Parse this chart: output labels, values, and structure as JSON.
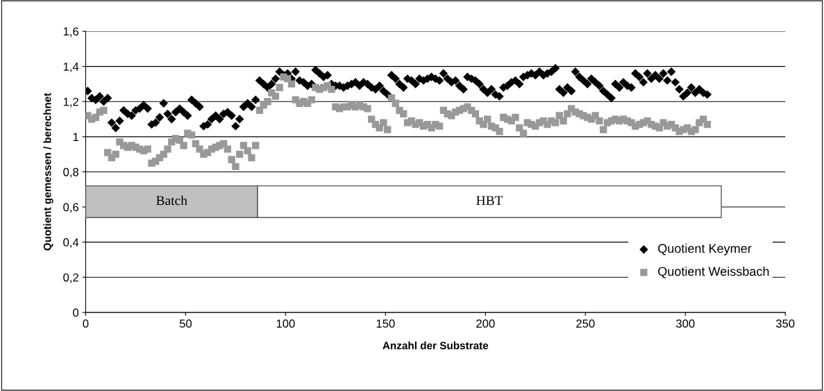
{
  "chart_data": {
    "type": "scatter",
    "xlabel": "Anzahl der Substrate",
    "ylabel": "Quotient gemessen / berechnet",
    "xlim": [
      0,
      350
    ],
    "xticks": [
      0,
      50,
      100,
      150,
      200,
      250,
      300,
      350
    ],
    "ylim": [
      0,
      1.6
    ],
    "yticks": [
      0,
      {
        "value": 0.2,
        "label": "0,2"
      },
      {
        "value": 0.4,
        "label": "0,4"
      },
      {
        "value": 0.6,
        "label": "0,6"
      },
      {
        "value": 0.8,
        "label": "0,8"
      },
      1,
      {
        "value": 1.2,
        "label": "1,2"
      },
      {
        "value": 1.4,
        "label": "1,4"
      },
      {
        "value": 1.6,
        "label": "1,6"
      }
    ],
    "grid": "y",
    "legend": "bottom right",
    "bands": [
      {
        "axis": "x",
        "from": 0,
        "to": 86,
        "label": "Batch",
        "color": "#c0c0c0"
      },
      {
        "axis": "x",
        "from": 86,
        "to": 318,
        "label": "HBT",
        "color": "#ffffff"
      }
    ],
    "series": [
      {
        "name": "Quotient Keymer",
        "color": "#000000",
        "marker": "diamond",
        "x": [
          1,
          3,
          5,
          7,
          9,
          11,
          13,
          15,
          17,
          19,
          21,
          23,
          25,
          27,
          29,
          31,
          33,
          35,
          37,
          39,
          41,
          43,
          45,
          47,
          49,
          51,
          53,
          55,
          57,
          59,
          61,
          63,
          65,
          67,
          69,
          71,
          73,
          75,
          77,
          79,
          81,
          83,
          85,
          87,
          89,
          91,
          93,
          95,
          97,
          99,
          101,
          103,
          105,
          107,
          109,
          111,
          113,
          115,
          117,
          119,
          121,
          123,
          125,
          127,
          129,
          131,
          133,
          135,
          137,
          139,
          141,
          143,
          145,
          147,
          149,
          151,
          153,
          155,
          157,
          159,
          161,
          163,
          165,
          167,
          169,
          171,
          173,
          175,
          177,
          179,
          181,
          183,
          185,
          187,
          189,
          191,
          193,
          195,
          197,
          199,
          201,
          203,
          205,
          207,
          209,
          211,
          213,
          215,
          217,
          219,
          221,
          223,
          225,
          227,
          229,
          231,
          233,
          235,
          237,
          239,
          241,
          243,
          245,
          247,
          249,
          251,
          253,
          255,
          257,
          259,
          261,
          263,
          265,
          267,
          269,
          271,
          273,
          275,
          277,
          279,
          281,
          283,
          285,
          287,
          289,
          291,
          293,
          295,
          297,
          299,
          301,
          303,
          305,
          307,
          309,
          311
        ],
        "values": [
          1.26,
          1.22,
          1.21,
          1.23,
          1.2,
          1.22,
          1.08,
          1.05,
          1.09,
          1.15,
          1.13,
          1.12,
          1.15,
          1.16,
          1.18,
          1.16,
          1.07,
          1.08,
          1.11,
          1.19,
          1.13,
          1.1,
          1.14,
          1.16,
          1.14,
          1.12,
          1.21,
          1.19,
          1.17,
          1.06,
          1.07,
          1.1,
          1.12,
          1.1,
          1.13,
          1.14,
          1.12,
          1.06,
          1.1,
          1.17,
          1.19,
          1.17,
          1.21,
          1.32,
          1.3,
          1.28,
          1.3,
          1.33,
          1.37,
          1.35,
          1.36,
          1.33,
          1.37,
          1.32,
          1.31,
          1.29,
          1.3,
          1.38,
          1.36,
          1.34,
          1.35,
          1.3,
          1.29,
          1.29,
          1.28,
          1.29,
          1.3,
          1.31,
          1.29,
          1.31,
          1.3,
          1.28,
          1.27,
          1.29,
          1.26,
          1.24,
          1.35,
          1.33,
          1.3,
          1.28,
          1.33,
          1.32,
          1.3,
          1.33,
          1.32,
          1.33,
          1.34,
          1.33,
          1.32,
          1.36,
          1.33,
          1.31,
          1.32,
          1.29,
          1.27,
          1.34,
          1.33,
          1.32,
          1.3,
          1.27,
          1.25,
          1.27,
          1.24,
          1.23,
          1.28,
          1.29,
          1.31,
          1.32,
          1.3,
          1.34,
          1.35,
          1.36,
          1.35,
          1.37,
          1.35,
          1.36,
          1.37,
          1.39,
          1.27,
          1.25,
          1.28,
          1.26,
          1.37,
          1.34,
          1.32,
          1.3,
          1.33,
          1.31,
          1.29,
          1.26,
          1.24,
          1.22,
          1.3,
          1.28,
          1.31,
          1.29,
          1.28,
          1.36,
          1.34,
          1.31,
          1.36,
          1.33,
          1.35,
          1.33,
          1.36,
          1.32,
          1.37,
          1.31,
          1.27,
          1.23,
          1.25,
          1.28,
          1.25,
          1.27,
          1.25,
          1.24
        ]
      },
      {
        "name": "Quotient Weissbach",
        "color": "#999999",
        "marker": "square",
        "x": [
          1,
          3,
          5,
          7,
          9,
          11,
          13,
          15,
          17,
          19,
          21,
          23,
          25,
          27,
          29,
          31,
          33,
          35,
          37,
          39,
          41,
          43,
          45,
          47,
          49,
          51,
          53,
          55,
          57,
          59,
          61,
          63,
          65,
          67,
          69,
          71,
          73,
          75,
          77,
          79,
          81,
          83,
          85,
          87,
          89,
          91,
          93,
          95,
          97,
          99,
          101,
          103,
          105,
          107,
          109,
          111,
          113,
          115,
          117,
          119,
          121,
          123,
          125,
          127,
          129,
          131,
          133,
          135,
          137,
          139,
          141,
          143,
          145,
          147,
          149,
          151,
          153,
          155,
          157,
          159,
          161,
          163,
          165,
          167,
          169,
          171,
          173,
          175,
          177,
          179,
          181,
          183,
          185,
          187,
          189,
          191,
          193,
          195,
          197,
          199,
          201,
          203,
          205,
          207,
          209,
          211,
          213,
          215,
          217,
          219,
          221,
          223,
          225,
          227,
          229,
          231,
          233,
          235,
          237,
          239,
          241,
          243,
          245,
          247,
          249,
          251,
          253,
          255,
          257,
          259,
          261,
          263,
          265,
          267,
          269,
          271,
          273,
          275,
          277,
          279,
          281,
          283,
          285,
          287,
          289,
          291,
          293,
          295,
          297,
          299,
          301,
          303,
          305,
          307,
          309,
          311
        ],
        "values": [
          1.12,
          1.1,
          1.11,
          1.14,
          1.15,
          0.91,
          0.88,
          0.9,
          0.97,
          0.95,
          0.94,
          0.95,
          0.94,
          0.93,
          0.92,
          0.93,
          0.85,
          0.86,
          0.88,
          0.9,
          0.93,
          0.97,
          0.99,
          0.98,
          0.95,
          1.02,
          1.01,
          0.96,
          0.93,
          0.9,
          0.91,
          0.93,
          0.94,
          0.95,
          0.96,
          0.93,
          0.87,
          0.83,
          0.9,
          0.95,
          0.92,
          0.88,
          0.95,
          1.15,
          1.18,
          1.2,
          1.25,
          1.23,
          1.28,
          1.34,
          1.33,
          1.3,
          1.21,
          1.19,
          1.2,
          1.19,
          1.21,
          1.28,
          1.27,
          1.28,
          1.29,
          1.27,
          1.17,
          1.16,
          1.17,
          1.17,
          1.18,
          1.17,
          1.18,
          1.17,
          1.16,
          1.1,
          1.07,
          1.05,
          1.08,
          1.04,
          1.22,
          1.19,
          1.15,
          1.13,
          1.08,
          1.09,
          1.07,
          1.08,
          1.06,
          1.07,
          1.05,
          1.07,
          1.06,
          1.15,
          1.13,
          1.12,
          1.14,
          1.15,
          1.16,
          1.17,
          1.15,
          1.13,
          1.09,
          1.07,
          1.1,
          1.06,
          1.05,
          1.03,
          1.11,
          1.1,
          1.09,
          1.11,
          1.05,
          1.02,
          1.08,
          1.07,
          1.06,
          1.08,
          1.09,
          1.07,
          1.09,
          1.08,
          1.12,
          1.09,
          1.13,
          1.16,
          1.14,
          1.13,
          1.12,
          1.11,
          1.1,
          1.12,
          1.09,
          1.04,
          1.08,
          1.09,
          1.1,
          1.09,
          1.1,
          1.09,
          1.08,
          1.06,
          1.07,
          1.08,
          1.09,
          1.07,
          1.06,
          1.05,
          1.08,
          1.06,
          1.07,
          1.05,
          1.03,
          1.04,
          1.05,
          1.03,
          1.04,
          1.08,
          1.1,
          1.07
        ]
      }
    ]
  }
}
